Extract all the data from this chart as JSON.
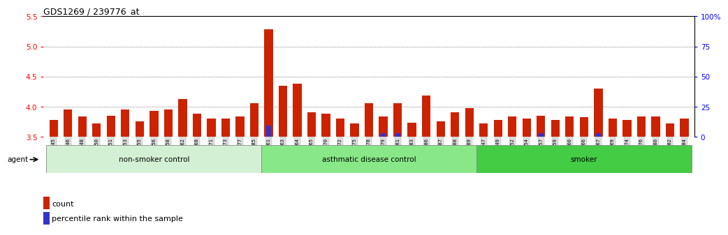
{
  "title": "GDS1269 / 239776_at",
  "categories": [
    "GSM38345",
    "GSM38346",
    "GSM38348",
    "GSM38350",
    "GSM38351",
    "GSM38353",
    "GSM38355",
    "GSM38356",
    "GSM38358",
    "GSM38362",
    "GSM38368",
    "GSM38371",
    "GSM38373",
    "GSM38377",
    "GSM38385",
    "GSM38361",
    "GSM38363",
    "GSM38364",
    "GSM38365",
    "GSM38370",
    "GSM38372",
    "GSM38375",
    "GSM38378",
    "GSM38379",
    "GSM38381",
    "GSM38383",
    "GSM38386",
    "GSM38387",
    "GSM38388",
    "GSM38389",
    "GSM38347",
    "GSM38349",
    "GSM38352",
    "GSM38354",
    "GSM38357",
    "GSM38359",
    "GSM38360",
    "GSM38366",
    "GSM38367",
    "GSM38369",
    "GSM38374",
    "GSM38376",
    "GSM38380",
    "GSM38382",
    "GSM38384"
  ],
  "count_values": [
    3.78,
    3.95,
    3.83,
    3.72,
    3.85,
    3.95,
    3.75,
    3.93,
    3.95,
    4.13,
    3.88,
    3.8,
    3.8,
    3.83,
    4.05,
    5.28,
    4.35,
    4.38,
    3.9,
    3.88,
    3.8,
    3.72,
    4.05,
    3.83,
    4.06,
    3.73,
    4.18,
    3.75,
    3.9,
    3.97,
    3.72,
    3.78,
    3.83,
    3.8,
    3.85,
    3.78,
    3.83,
    3.82,
    4.3,
    3.8,
    3.78,
    3.83,
    3.83,
    3.72,
    3.8
  ],
  "percentile_values": [
    0,
    0,
    0,
    0,
    0,
    0,
    0,
    0,
    0,
    0,
    0,
    0,
    0,
    0,
    0,
    9,
    0,
    0,
    0,
    0,
    0,
    0,
    0,
    3,
    3,
    0,
    0,
    0,
    0,
    0,
    0,
    0,
    0,
    0,
    3,
    0,
    0,
    0,
    3,
    0,
    0,
    0,
    0,
    0,
    0
  ],
  "groups": [
    {
      "label": "non-smoker control",
      "start": 0,
      "end": 15,
      "color": "#d4f0d4"
    },
    {
      "label": "asthmatic disease control",
      "start": 15,
      "end": 30,
      "color": "#88e888"
    },
    {
      "label": "smoker",
      "start": 30,
      "end": 45,
      "color": "#44cc44"
    }
  ],
  "ylim_left": [
    3.5,
    5.5
  ],
  "ylim_right": [
    0,
    100
  ],
  "yticks_left": [
    3.5,
    4.0,
    4.5,
    5.0,
    5.5
  ],
  "yticks_right": [
    0,
    25,
    50,
    75,
    100
  ],
  "bar_color": "#cc2200",
  "percentile_color": "#3333cc",
  "bg_color": "#ffffff",
  "grid_color": "#333333",
  "agent_label": "agent",
  "legend_count": "count",
  "legend_percentile": "percentile rank within the sample",
  "tick_bg_color": "#dddddd"
}
